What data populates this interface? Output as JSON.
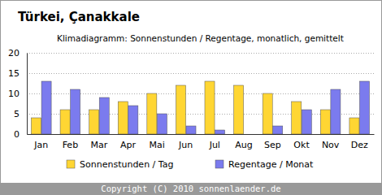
{
  "chart_data": {
    "type": "bar",
    "title": "Türkei, Çanakkale",
    "subtitle": "Klimadiagramm: Sonnenstunden / Regentage, monatlich, gemittelt",
    "footer": "Copyright (C) 2010 sonnenlaender.de",
    "categories": [
      "Jan",
      "Feb",
      "Mar",
      "Apr",
      "Mai",
      "Jun",
      "Jul",
      "Aug",
      "Sep",
      "Okt",
      "Nov",
      "Dez"
    ],
    "series": [
      {
        "name": "Sonnenstunden / Tag",
        "color": "#ffd633",
        "values": [
          4,
          6,
          6,
          8,
          10,
          12,
          13,
          12,
          10,
          8,
          6,
          4
        ]
      },
      {
        "name": "Regentage / Monat",
        "color": "#7b7bee",
        "values": [
          13,
          11,
          9,
          7,
          5,
          2,
          1,
          0,
          2,
          6,
          11,
          13
        ]
      }
    ],
    "ylim": [
      0,
      20
    ],
    "yticks": [
      0,
      5,
      10,
      15,
      20
    ],
    "grid": true,
    "legend": "bottom"
  }
}
